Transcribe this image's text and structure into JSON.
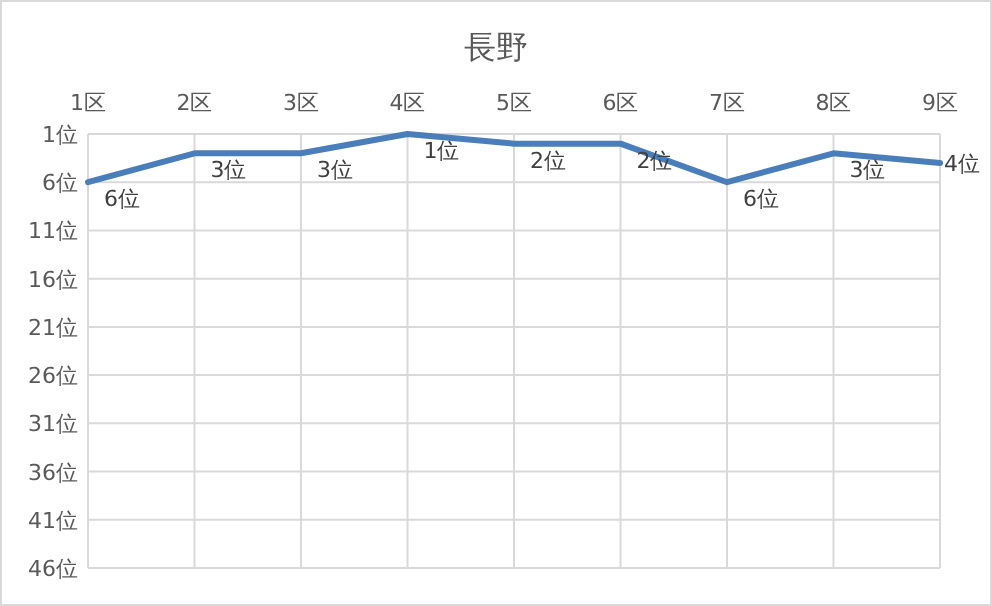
{
  "chart_data": {
    "type": "line",
    "title": "長野",
    "categories": [
      "1区",
      "2区",
      "3区",
      "4区",
      "5区",
      "6区",
      "7区",
      "8区",
      "9区"
    ],
    "series": [
      {
        "color": "#4a7ebb",
        "values": [
          6,
          3,
          3,
          1,
          2,
          2,
          6,
          3,
          4
        ],
        "value_labels": [
          "6位",
          "3位",
          "3位",
          "1位",
          "2位",
          "2位",
          "6位",
          "3位",
          "4位"
        ]
      }
    ],
    "ylim": [
      46,
      1
    ],
    "yticks": [
      {
        "value": 1,
        "label": "1位"
      },
      {
        "value": 6,
        "label": "6位"
      },
      {
        "value": 11,
        "label": "11位"
      },
      {
        "value": 16,
        "label": "16位"
      },
      {
        "value": 21,
        "label": "21位"
      },
      {
        "value": 26,
        "label": "26位"
      },
      {
        "value": 31,
        "label": "31位"
      },
      {
        "value": 36,
        "label": "36位"
      },
      {
        "value": 41,
        "label": "41位"
      },
      {
        "value": 46,
        "label": "46位"
      }
    ],
    "grid": true,
    "marker": "none",
    "line_style": "solid"
  }
}
